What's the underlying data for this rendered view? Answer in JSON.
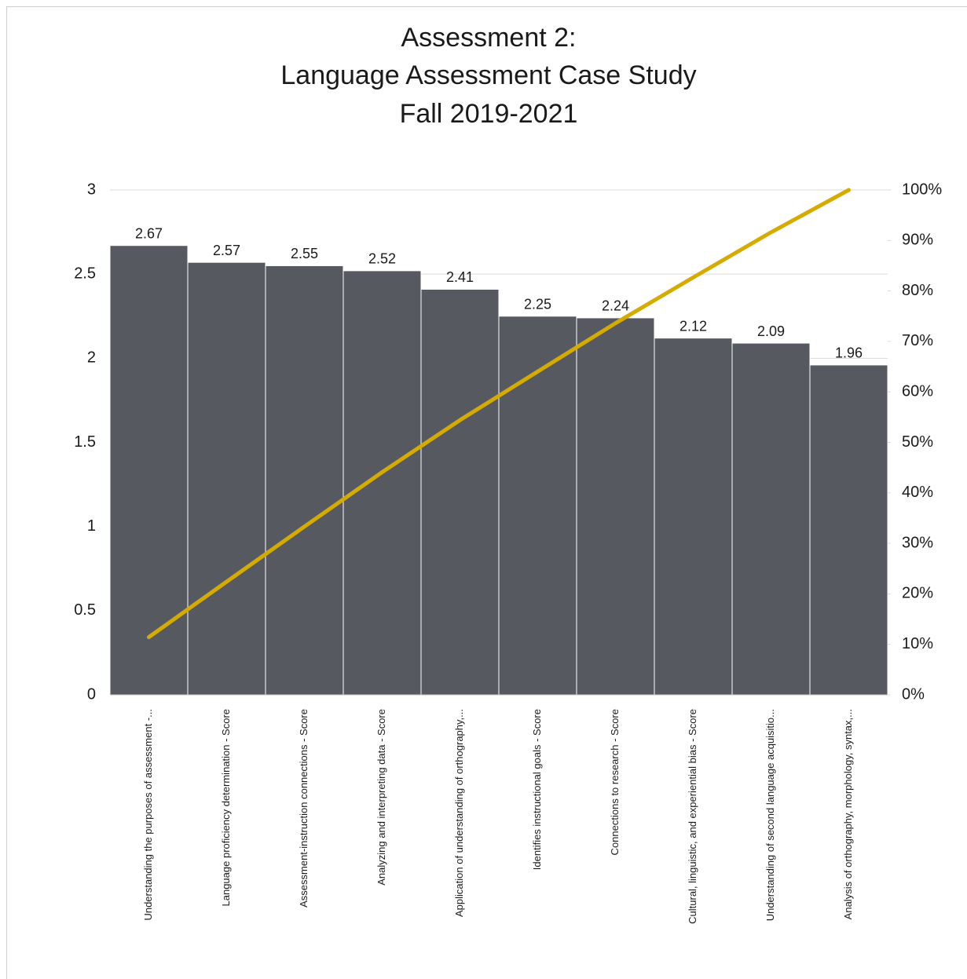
{
  "chart_data": {
    "type": "pareto",
    "title": [
      "Assessment 2:",
      "Language Assessment Case Study",
      "Fall 2019-2021"
    ],
    "categories": [
      "Understanding the purposes of assessment -...",
      "Language proficiency determination - Score",
      "Assessment-instruction connections - Score",
      "Analyzing and interpreting data - Score",
      "Application of understanding of orthography,...",
      "Identifies instructional goals - Score",
      "Connections to research - Score",
      "Cultural, linguistic, and experiential bias - Score",
      "Understanding of second language acquisitio...",
      "Analysis of orthography, morphology, syntax,..."
    ],
    "series": [
      {
        "type": "bar",
        "color": "#565a60",
        "values": [
          2.67,
          2.57,
          2.55,
          2.52,
          2.41,
          2.25,
          2.24,
          2.12,
          2.09,
          1.96
        ]
      },
      {
        "type": "line",
        "color": "#d6ab00",
        "axis": "y2",
        "values": [
          11.42,
          22.41,
          33.32,
          44.1,
          54.41,
          64.03,
          73.61,
          82.68,
          91.62,
          100
        ]
      }
    ],
    "ylim": [
      0,
      3
    ],
    "yticks": [
      0,
      0.5,
      1,
      1.5,
      2,
      2.5,
      3
    ],
    "y2lim": [
      0,
      100
    ],
    "y2ticks": [
      {
        "value": 0,
        "label": "0%"
      },
      {
        "value": 10,
        "label": "10%"
      },
      {
        "value": 20,
        "label": "20%"
      },
      {
        "value": 30,
        "label": "30%"
      },
      {
        "value": 40,
        "label": "40%"
      },
      {
        "value": 50,
        "label": "50%"
      },
      {
        "value": 60,
        "label": "60%"
      },
      {
        "value": 70,
        "label": "70%"
      },
      {
        "value": 80,
        "label": "80%"
      },
      {
        "value": 90,
        "label": "90%"
      },
      {
        "value": 100,
        "label": "100%"
      }
    ],
    "grid": true
  }
}
